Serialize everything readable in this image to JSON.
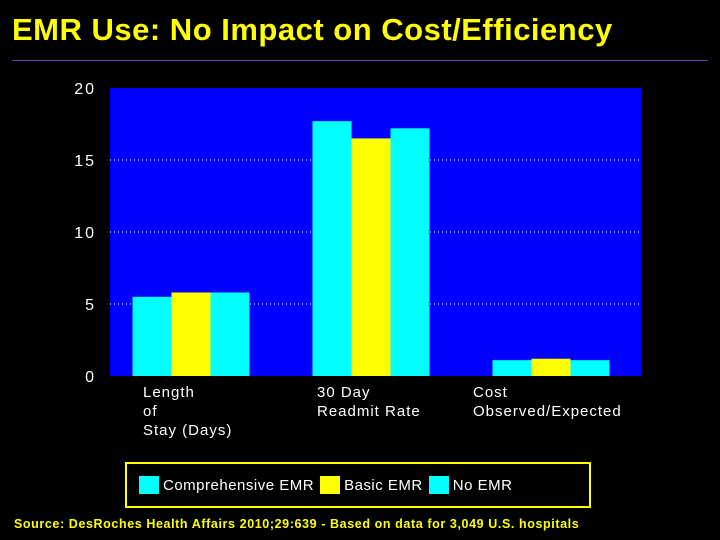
{
  "title": "EMR Use: No Impact on Cost/Efficiency",
  "source": "Source: DesRoches Health Affairs 2010;29:639 - Based on data for 3,049 U.S. hospitals",
  "colors": {
    "background": "#000000",
    "plot_area": "#0000ff",
    "title": "#ffff00",
    "comprehensive": "#00ffff",
    "basic": "#ffff00",
    "none": "#00ffff"
  },
  "chart_data": {
    "type": "bar",
    "title": "EMR Use: No Impact on Cost/Efficiency",
    "categories": [
      "Length\nof\nStay (Days)",
      "30 Day\nReadmit Rate",
      "Cost\nObserved/Expected"
    ],
    "series": [
      {
        "name": "Comprehensive EMR",
        "values": [
          5.5,
          17.7,
          1.1
        ]
      },
      {
        "name": "Basic EMR",
        "values": [
          5.8,
          16.5,
          1.2
        ]
      },
      {
        "name": "No EMR",
        "values": [
          5.8,
          17.2,
          1.1
        ]
      }
    ],
    "yticks": [
      "0",
      "5",
      "10",
      "15",
      "20"
    ],
    "ylim": [
      0,
      20
    ],
    "xlabel": "",
    "ylabel": "",
    "grid": true,
    "legend": "bottom"
  }
}
